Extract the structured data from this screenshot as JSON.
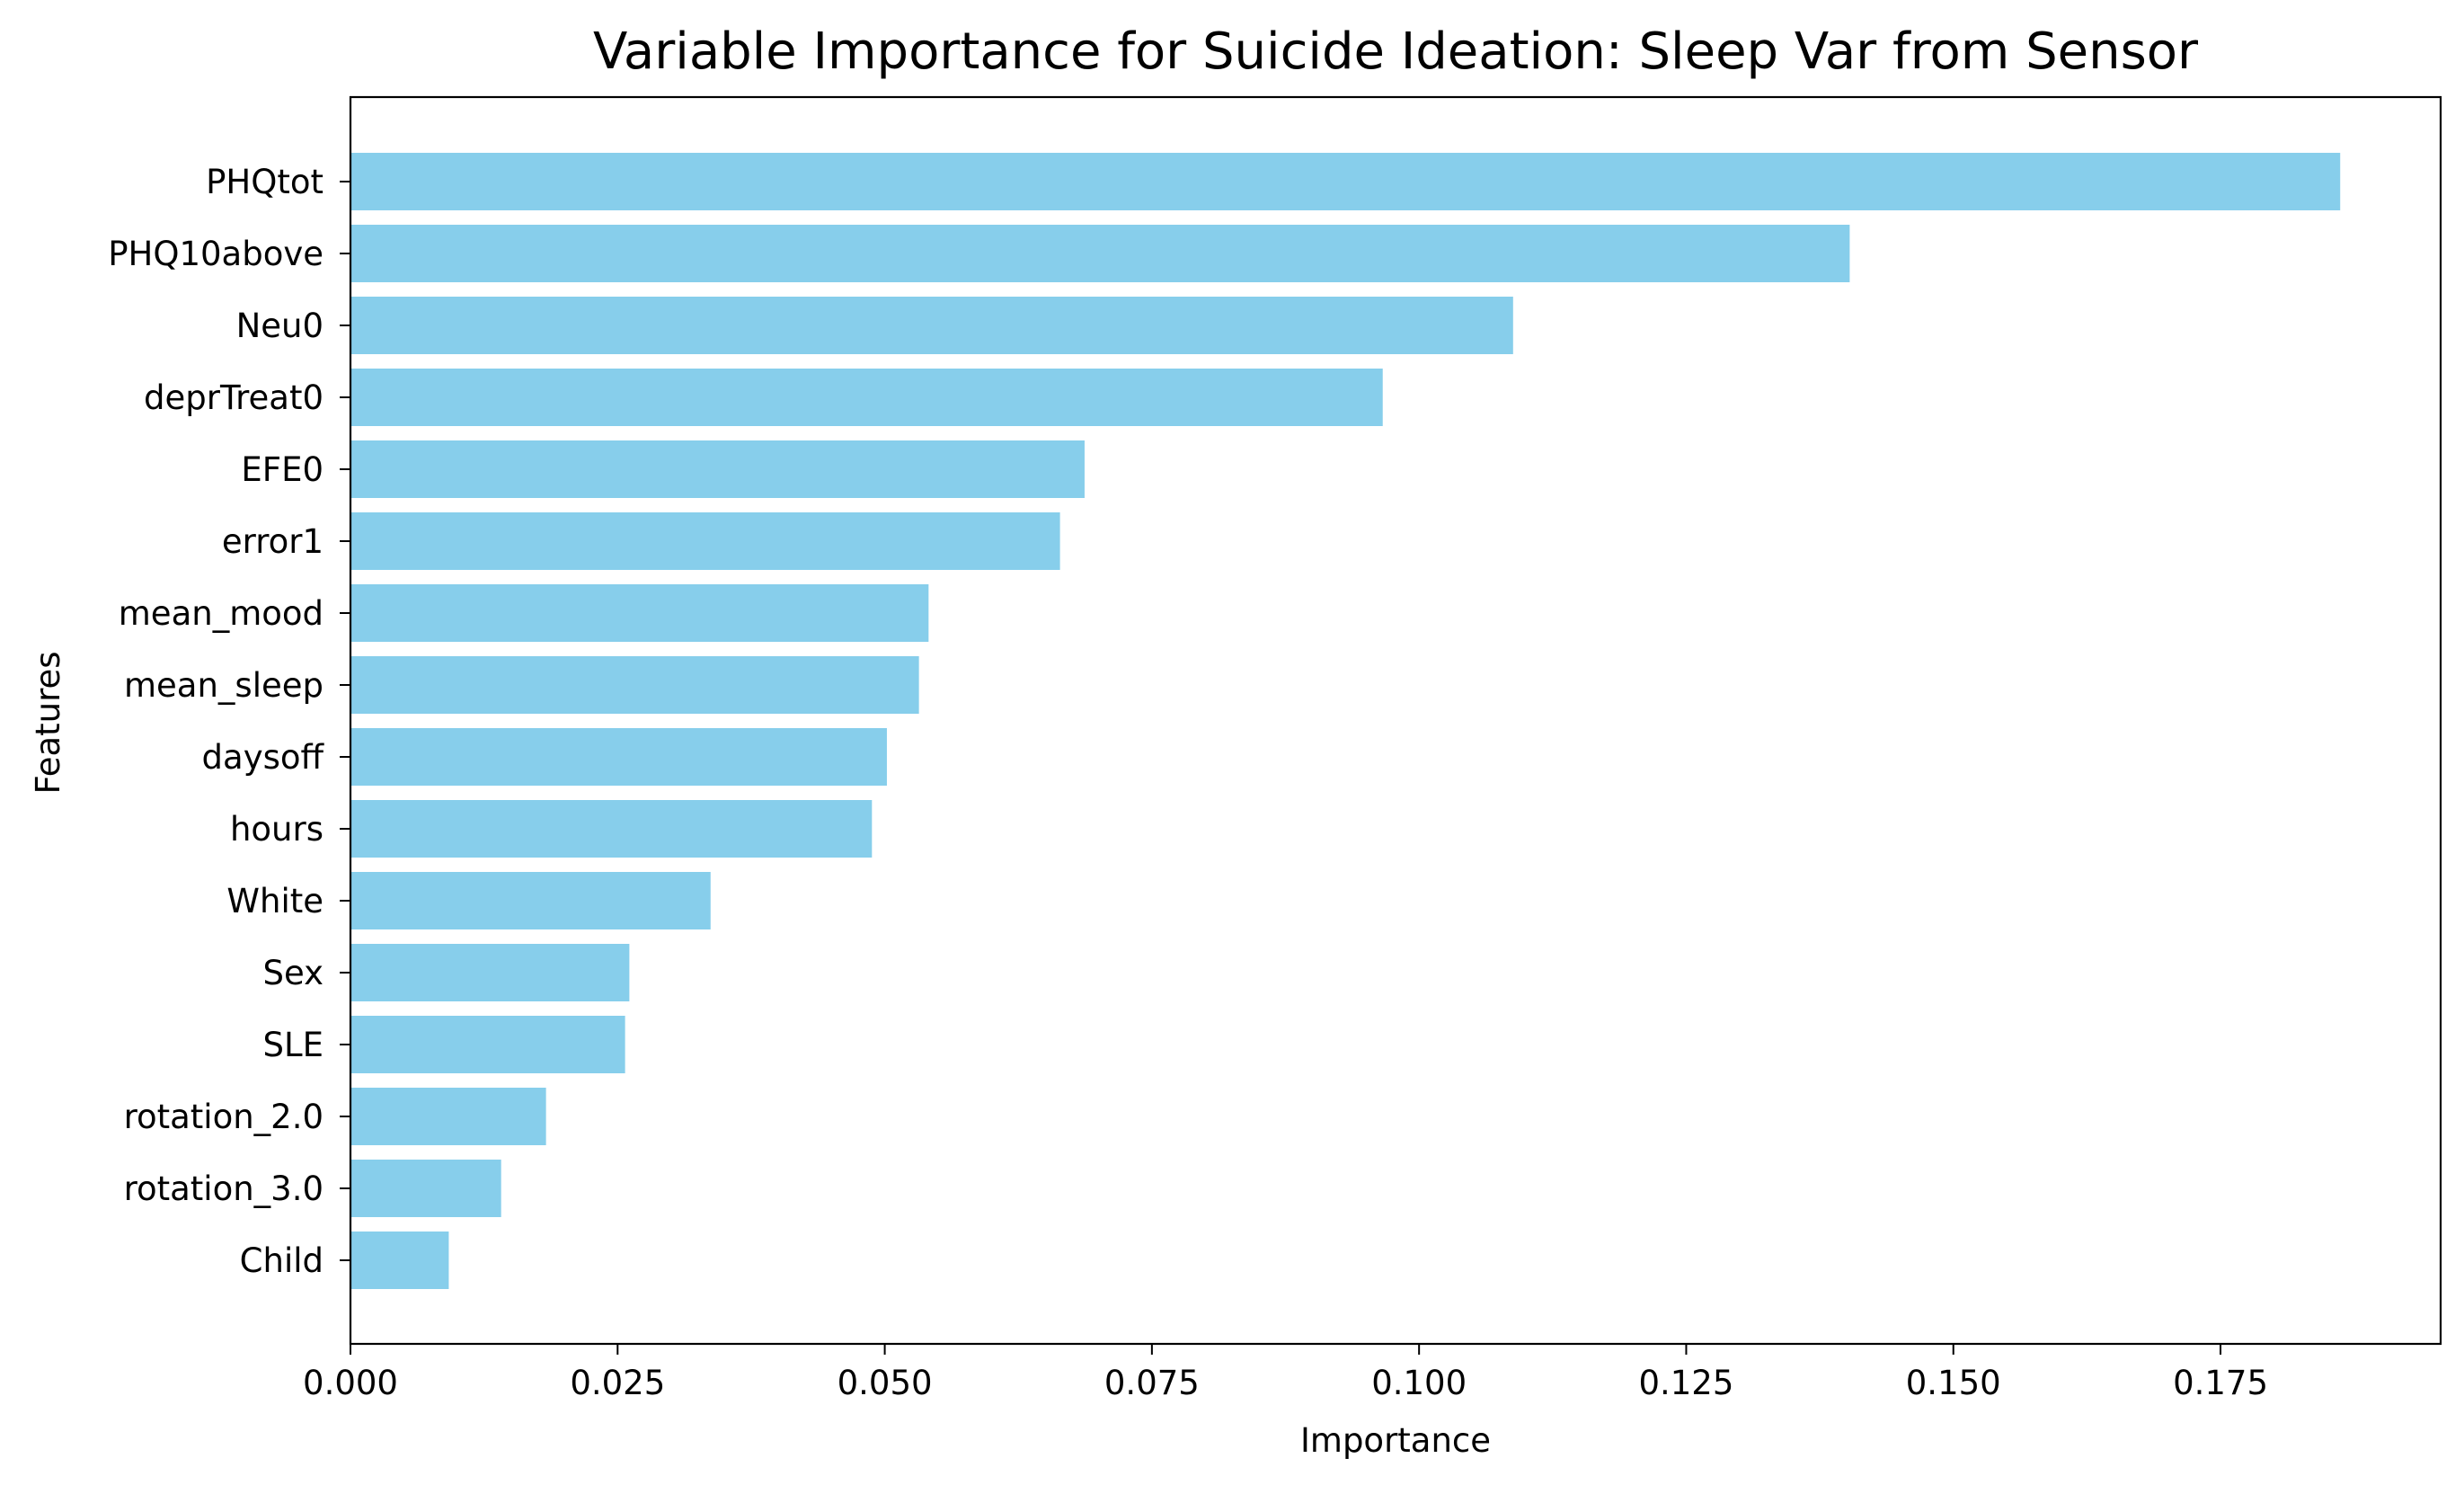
{
  "chart_data": {
    "type": "bar",
    "orientation": "horizontal",
    "title": "Variable Importance for Suicide Ideation: Sleep Var from Sensor",
    "xlabel": "Importance",
    "ylabel": "Features",
    "categories": [
      "PHQtot",
      "PHQ10above",
      "Neu0",
      "deprTreat0",
      "EFE0",
      "error1",
      "mean_mood",
      "mean_sleep",
      "daysoff",
      "hours",
      "White",
      "Sex",
      "SLE",
      "rotation_2.0",
      "rotation_3.0",
      "Child"
    ],
    "values": [
      0.1862,
      0.1403,
      0.1088,
      0.0966,
      0.0687,
      0.0664,
      0.0541,
      0.0532,
      0.0502,
      0.0488,
      0.0337,
      0.0261,
      0.0257,
      0.0183,
      0.0141,
      0.0092
    ],
    "xlim": [
      0,
      0.1956
    ],
    "xticks": [
      "0.000",
      "0.025",
      "0.050",
      "0.075",
      "0.100",
      "0.125",
      "0.150",
      "0.175"
    ],
    "bar_color": "#87ceeb",
    "grid": false,
    "legend": "none"
  }
}
